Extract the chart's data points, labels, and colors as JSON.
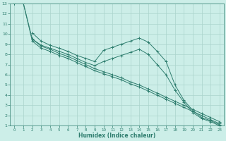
{
  "bg_color": "#cceee8",
  "grid_color": "#aad4cc",
  "line_color": "#2e7d6e",
  "xlabel": "Humidex (Indice chaleur)",
  "xlim": [
    -0.5,
    23.5
  ],
  "ylim": [
    1,
    13
  ],
  "yticks": [
    1,
    2,
    3,
    4,
    5,
    6,
    7,
    8,
    9,
    10,
    11,
    12,
    13
  ],
  "xticks": [
    0,
    1,
    2,
    3,
    4,
    5,
    6,
    7,
    8,
    9,
    10,
    11,
    12,
    13,
    14,
    15,
    16,
    17,
    18,
    19,
    20,
    21,
    22,
    23
  ],
  "lines": [
    {
      "x": [
        0,
        1,
        2,
        3,
        4,
        5,
        6,
        7,
        8,
        9,
        10,
        11,
        12,
        13,
        14,
        15,
        16,
        17,
        18,
        19,
        20,
        21,
        22,
        23
      ],
      "y": [
        13,
        13,
        9.5,
        8.8,
        8.5,
        8.1,
        7.8,
        7.4,
        7.0,
        6.6,
        6.3,
        6.0,
        5.7,
        5.3,
        5.0,
        4.6,
        4.2,
        3.8,
        3.4,
        3.0,
        2.6,
        2.2,
        1.8,
        1.4
      ]
    },
    {
      "x": [
        0,
        1,
        2,
        3,
        4,
        5,
        6,
        7,
        8,
        9,
        10,
        11,
        12,
        13,
        14,
        15,
        16,
        17,
        18,
        19,
        20,
        21,
        22,
        23
      ],
      "y": [
        13,
        13,
        9.3,
        8.6,
        8.3,
        7.9,
        7.6,
        7.2,
        6.8,
        6.4,
        6.1,
        5.8,
        5.5,
        5.1,
        4.8,
        4.4,
        4.0,
        3.6,
        3.2,
        2.8,
        2.4,
        2.0,
        1.6,
        1.2
      ]
    },
    {
      "x": [
        2,
        3,
        4,
        5,
        6,
        7,
        8,
        9,
        10,
        11,
        12,
        13,
        14,
        15,
        16,
        17,
        18,
        19,
        20,
        21,
        22,
        23
      ],
      "y": [
        10.1,
        9.3,
        8.9,
        8.6,
        8.3,
        7.9,
        7.6,
        7.3,
        8.4,
        8.7,
        9.0,
        9.3,
        9.6,
        9.2,
        8.3,
        7.3,
        5.0,
        3.5,
        2.5,
        1.8,
        1.5,
        1.1
      ]
    },
    {
      "x": [
        2,
        3,
        4,
        5,
        6,
        7,
        8,
        9,
        10,
        11,
        12,
        13,
        14,
        15,
        16,
        17,
        18,
        19,
        20,
        21,
        22,
        23
      ],
      "y": [
        9.5,
        8.9,
        8.6,
        8.3,
        8.0,
        7.6,
        7.2,
        6.9,
        7.3,
        7.6,
        7.9,
        8.2,
        8.5,
        8.0,
        7.0,
        6.0,
        4.5,
        3.3,
        2.3,
        1.7,
        1.4,
        1.0
      ]
    }
  ]
}
